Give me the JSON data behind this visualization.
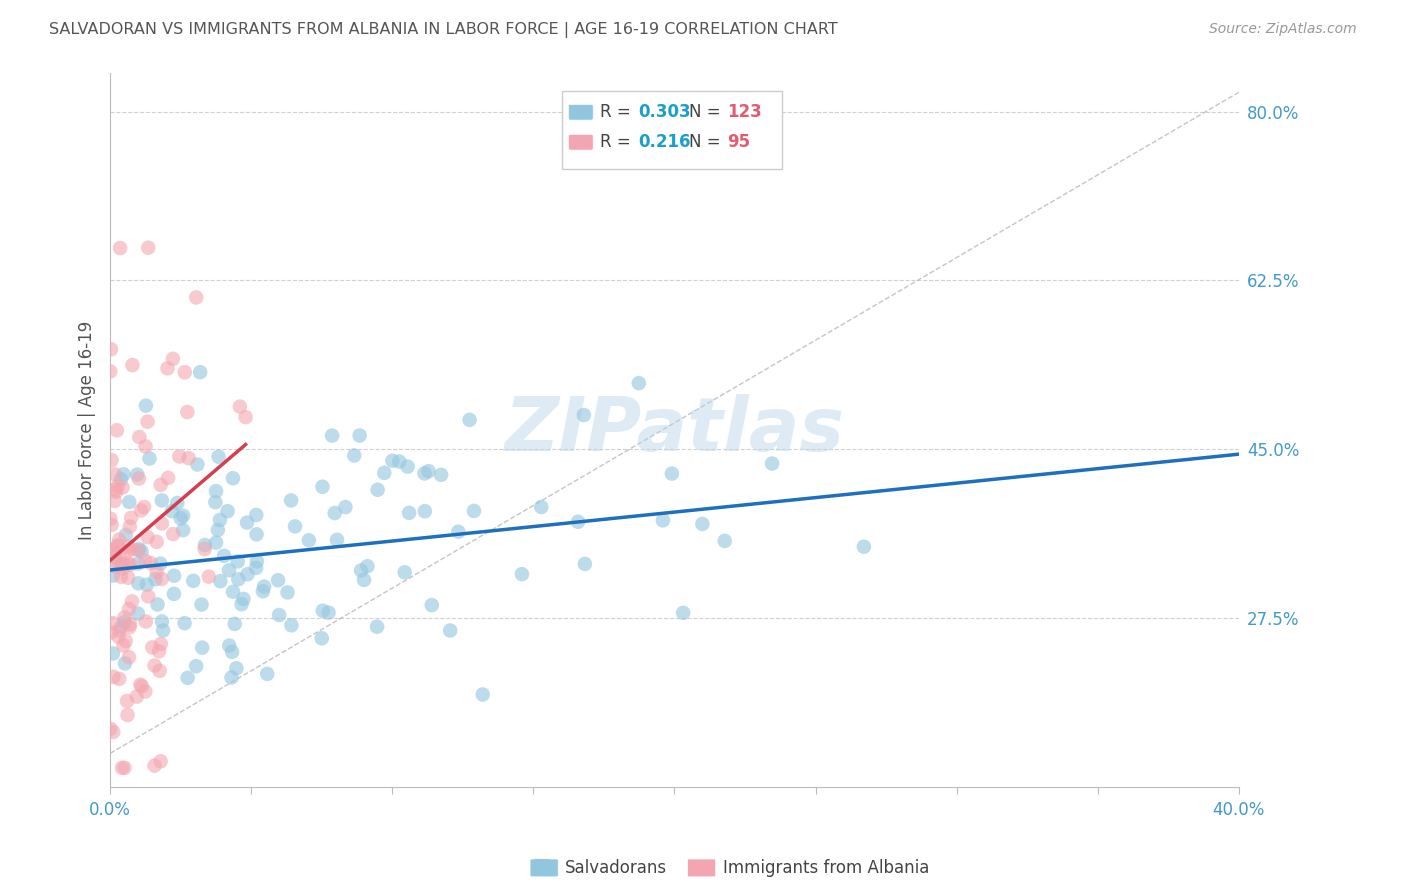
{
  "title": "SALVADORAN VS IMMIGRANTS FROM ALBANIA IN LABOR FORCE | AGE 16-19 CORRELATION CHART",
  "source": "Source: ZipAtlas.com",
  "ylabel": "In Labor Force | Age 16-19",
  "xlim": [
    0.0,
    0.4
  ],
  "ylim": [
    0.1,
    0.84
  ],
  "xticks": [
    0.0,
    0.05,
    0.1,
    0.15,
    0.2,
    0.25,
    0.3,
    0.35,
    0.4
  ],
  "xticklabels": [
    "0.0%",
    "",
    "",
    "",
    "",
    "",
    "",
    "",
    "40.0%"
  ],
  "yticks_right": [
    0.275,
    0.45,
    0.625,
    0.8
  ],
  "yticklabels_right": [
    "27.5%",
    "45.0%",
    "62.5%",
    "80.0%"
  ],
  "r_blue": 0.303,
  "n_blue": 123,
  "r_pink": 0.216,
  "n_pink": 95,
  "blue_color": "#92c5de",
  "pink_color": "#f4a6b0",
  "line_blue_color": "#1f6fbf",
  "line_pink_color": "#d43f4f",
  "watermark": "ZIPatlas",
  "background_color": "#ffffff",
  "grid_color": "#cccccc",
  "title_color": "#555555",
  "axis_label_color": "#555555",
  "blue_trend_x0": 0.0,
  "blue_trend_x1": 0.4,
  "blue_trend_y0": 0.325,
  "blue_trend_y1": 0.445,
  "pink_trend_x0": 0.0,
  "pink_trend_x1": 0.048,
  "pink_trend_y0": 0.335,
  "pink_trend_y1": 0.455
}
